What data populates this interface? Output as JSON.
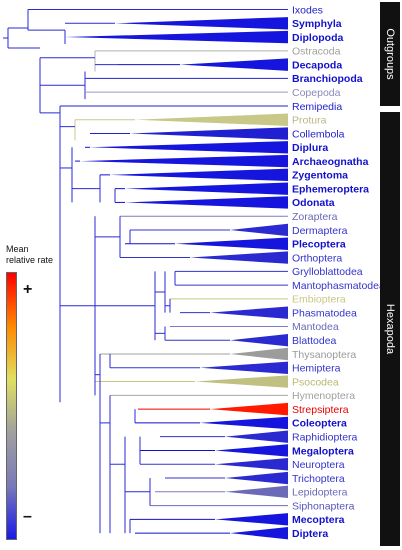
{
  "groups": {
    "outgroups_label": "Outgroups",
    "hexapoda_label": "Hexapoda"
  },
  "legend": {
    "title_line1": "Mean",
    "title_line2": "relative rate",
    "plus": "+",
    "minus": "–",
    "gradient_colors_bottom_to_top": [
      "#1a1ae8",
      "#7a7ab8",
      "#a0a0a0",
      "#e0e060",
      "#ff8800",
      "#ff0000"
    ]
  },
  "taxa": [
    {
      "label": "Ixodes",
      "color": "#2222cc",
      "bold": false
    },
    {
      "label": "Symphyla",
      "color": "#1111cc",
      "bold": true
    },
    {
      "label": "Diplopoda",
      "color": "#1111cc",
      "bold": true
    },
    {
      "label": "Ostracoda",
      "color": "#a0a0a0",
      "bold": false
    },
    {
      "label": "Decapoda",
      "color": "#1111cc",
      "bold": true
    },
    {
      "label": "Branchiopoda",
      "color": "#1111cc",
      "bold": true
    },
    {
      "label": "Copepoda",
      "color": "#8a8ab8",
      "bold": false
    },
    {
      "label": "Remipedia",
      "color": "#2222cc",
      "bold": false
    },
    {
      "label": "Protura",
      "color": "#b8b880",
      "bold": false
    },
    {
      "label": "Collembola",
      "color": "#2222cc",
      "bold": false
    },
    {
      "label": "Diplura",
      "color": "#1111cc",
      "bold": true
    },
    {
      "label": "Archaeognatha",
      "color": "#1111cc",
      "bold": true
    },
    {
      "label": "Zygentoma",
      "color": "#1111cc",
      "bold": true
    },
    {
      "label": "Ephemeroptera",
      "color": "#1111cc",
      "bold": true
    },
    {
      "label": "Odonata",
      "color": "#1111cc",
      "bold": true
    },
    {
      "label": "Zoraptera",
      "color": "#6a6ab8",
      "bold": false
    },
    {
      "label": "Dermaptera",
      "color": "#3333cc",
      "bold": false
    },
    {
      "label": "Plecoptera",
      "color": "#1111cc",
      "bold": true
    },
    {
      "label": "Orthoptera",
      "color": "#3333cc",
      "bold": false
    },
    {
      "label": "Grylloblattodea",
      "color": "#3333cc",
      "bold": false
    },
    {
      "label": "Mantophasmatodea",
      "color": "#3333cc",
      "bold": false
    },
    {
      "label": "Embioptera",
      "color": "#c8c880",
      "bold": false
    },
    {
      "label": "Phasmatodea",
      "color": "#3333cc",
      "bold": false
    },
    {
      "label": "Mantodea",
      "color": "#6a6ab8",
      "bold": false
    },
    {
      "label": "Blattodea",
      "color": "#3333cc",
      "bold": false
    },
    {
      "label": "Thysanoptera",
      "color": "#9a9a9a",
      "bold": false
    },
    {
      "label": "Hemiptera",
      "color": "#3333cc",
      "bold": false
    },
    {
      "label": "Psocodea",
      "color": "#b8b870",
      "bold": false
    },
    {
      "label": "Hymenoptera",
      "color": "#a0a0a0",
      "bold": false
    },
    {
      "label": "Strepsiptera",
      "color": "#ee0000",
      "bold": false
    },
    {
      "label": "Coleoptera",
      "color": "#1111cc",
      "bold": true
    },
    {
      "label": "Raphidioptera",
      "color": "#3333cc",
      "bold": false
    },
    {
      "label": "Megaloptera",
      "color": "#1111cc",
      "bold": true
    },
    {
      "label": "Neuroptera",
      "color": "#3333cc",
      "bold": false
    },
    {
      "label": "Trichoptera",
      "color": "#3333cc",
      "bold": false
    },
    {
      "label": "Lepidoptera",
      "color": "#6a6ab8",
      "bold": false
    },
    {
      "label": "Siphonaptera",
      "color": "#5555bb",
      "bold": false
    },
    {
      "label": "Mecoptera",
      "color": "#1111cc",
      "bold": true
    },
    {
      "label": "Diptera",
      "color": "#1111cc",
      "bold": true
    }
  ]
}
